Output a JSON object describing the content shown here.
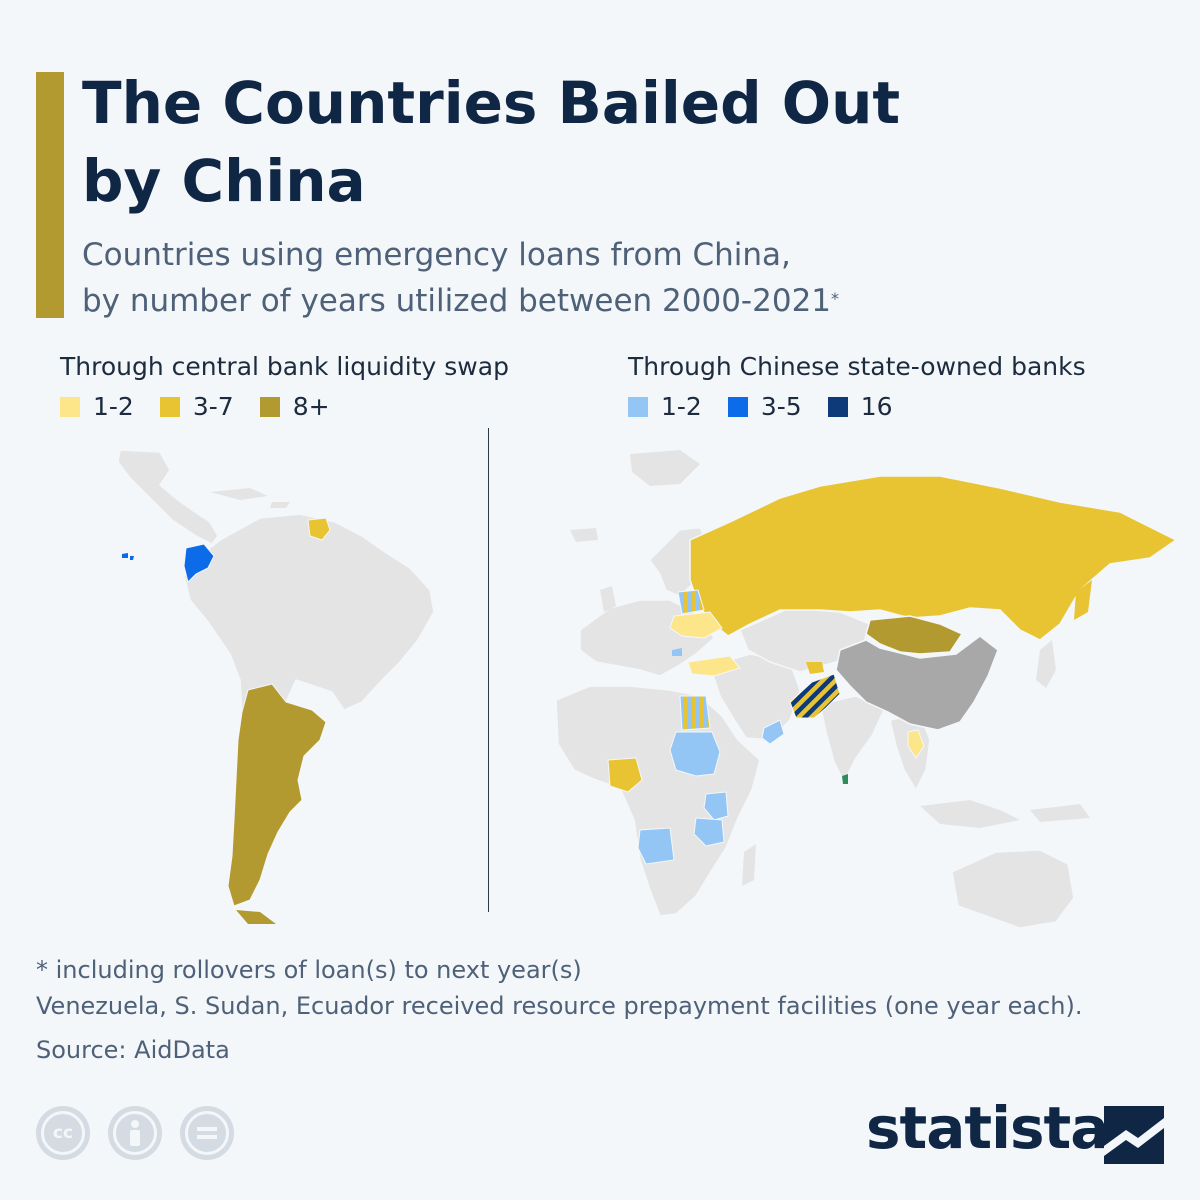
{
  "header": {
    "title_line1": "The Countries Bailed Out",
    "title_line2": "by China",
    "subtitle_line1": "Countries using emergency loans from China,",
    "subtitle_line2": "by number of years utilized between 2000-2021",
    "subtitle_mark": "*"
  },
  "legend_left": {
    "heading": "Through central bank liquidity swap",
    "items": [
      {
        "label": "1-2",
        "color": "#fde68a"
      },
      {
        "label": "3-7",
        "color": "#e9c432"
      },
      {
        "label": "8+",
        "color": "#b39a30"
      }
    ]
  },
  "legend_right": {
    "heading": "Through Chinese state-owned banks",
    "items": [
      {
        "label": "1-2",
        "color": "#93c5f5"
      },
      {
        "label": "3-5",
        "color": "#0b6be8"
      },
      {
        "label": "16",
        "color": "#0f3a7a"
      }
    ]
  },
  "map_data": {
    "swap_8_plus": [
      "Argentina",
      "Mongolia"
    ],
    "swap_3_7": [
      "Russia",
      "Suriname",
      "Nigeria",
      "Laos"
    ],
    "swap_1_2": [
      "Ukraine",
      "Turkey"
    ],
    "banks_1_2": [
      "Sudan",
      "Angola",
      "Kenya",
      "Tanzania",
      "Oman"
    ],
    "banks_3_5": [
      "Ecuador"
    ],
    "banks_16": [
      "Pakistan"
    ],
    "both": [
      "Belarus",
      "Egypt",
      "Pakistan"
    ],
    "china_color": "#a8a8a8",
    "land_color": "#e4e4e4"
  },
  "footer": {
    "note1": "* including rollovers of loan(s) to next year(s)",
    "note2": "Venezuela, S. Sudan, Ecuador received resource prepayment facilities (one year each).",
    "source": "Source: AidData",
    "brand": "statista"
  }
}
